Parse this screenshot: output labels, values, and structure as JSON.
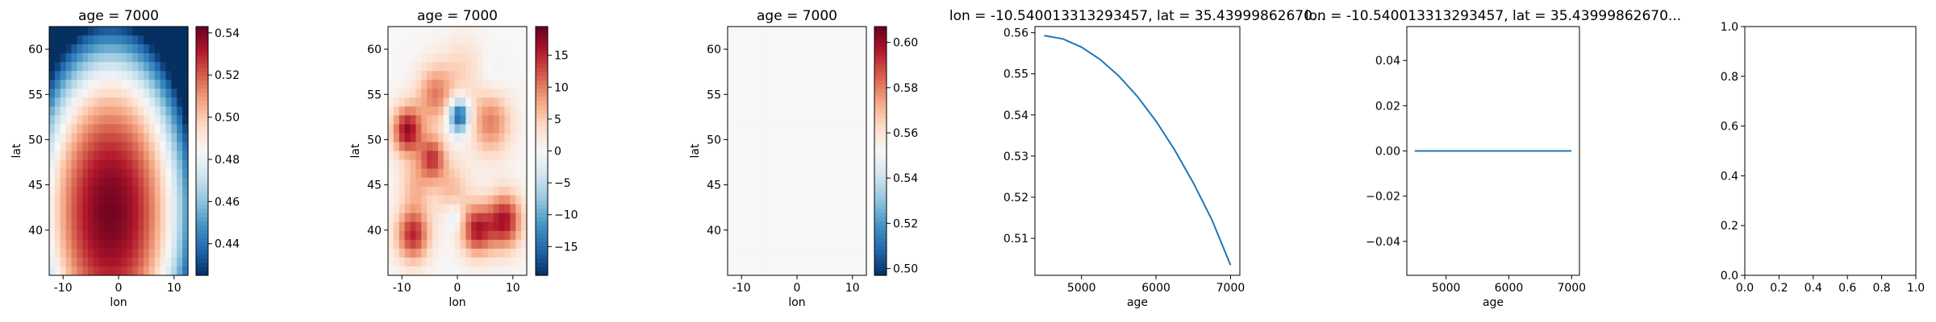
{
  "chart_data": [
    {
      "type": "heatmap",
      "title": "age = 7000",
      "xlabel": "lon",
      "ylabel": "lat",
      "xlim": [
        -12.5,
        12.5
      ],
      "ylim": [
        35,
        62.5
      ],
      "xticks": [
        "-10",
        "0",
        "10"
      ],
      "yticks": [
        "40",
        "45",
        "50",
        "55",
        "60"
      ],
      "colorbar": {
        "vmin": 0.425,
        "vmax": 0.543,
        "ticks": [
          "0.44",
          "0.46",
          "0.48",
          "0.50",
          "0.52",
          "0.54"
        ],
        "cmap": "RdBu_r"
      },
      "grid": false
    },
    {
      "type": "heatmap",
      "title": "age = 7000",
      "xlabel": "lon",
      "ylabel": "lat",
      "xlim": [
        -12.5,
        12.5
      ],
      "ylim": [
        35,
        62.5
      ],
      "xticks": [
        "-10",
        "0",
        "10"
      ],
      "yticks": [
        "40",
        "45",
        "50",
        "55",
        "60"
      ],
      "colorbar": {
        "vmin": -19.5,
        "vmax": 19.5,
        "ticks": [
          "−15",
          "−10",
          "−5",
          "0",
          "5",
          "10",
          "15"
        ],
        "cmap": "RdBu_r"
      },
      "grid": false
    },
    {
      "type": "heatmap",
      "title": "age = 7000",
      "xlabel": "lon",
      "ylabel": "lat",
      "xlim": [
        -12.5,
        12.5
      ],
      "ylim": [
        35,
        62.5
      ],
      "xticks": [
        "-10",
        "0",
        "10"
      ],
      "yticks": [
        "40",
        "45",
        "50",
        "55",
        "60"
      ],
      "colorbar": {
        "vmin": 0.497,
        "vmax": 0.607,
        "ticks": [
          "0.50",
          "0.52",
          "0.54",
          "0.56",
          "0.58",
          "0.60"
        ],
        "cmap": "RdBu_r"
      },
      "grid": false
    },
    {
      "type": "line",
      "title": "lon = -10.540013313293457, lat = 35.43999862670...",
      "xlabel": "age",
      "ylabel": "",
      "xlim": [
        4375,
        7125
      ],
      "ylim": [
        0.501,
        0.5615
      ],
      "xticks": [
        5000,
        6000,
        7000
      ],
      "yticks": [
        "0.51",
        "0.52",
        "0.53",
        "0.54",
        "0.55",
        "0.56"
      ],
      "series": [
        {
          "color": "#1f77b4",
          "x": [
            4500,
            4750,
            5000,
            5250,
            5500,
            5750,
            6000,
            6250,
            6500,
            6750,
            7000
          ],
          "y": [
            0.5593,
            0.5585,
            0.5565,
            0.5535,
            0.5495,
            0.5445,
            0.5385,
            0.5315,
            0.5235,
            0.5145,
            0.5035
          ]
        }
      ],
      "grid": false
    },
    {
      "type": "line",
      "title": "lon = -10.540013313293457, lat = 35.43999862670...",
      "xlabel": "age",
      "ylabel": "",
      "xlim": [
        4375,
        7125
      ],
      "ylim": [
        -0.055,
        0.055
      ],
      "xticks": [
        5000,
        6000,
        7000
      ],
      "yticks": [
        "−0.04",
        "−0.02",
        "0.00",
        "0.02",
        "0.04"
      ],
      "series": [
        {
          "color": "#1f77b4",
          "x": [
            4500,
            7000
          ],
          "y": [
            0,
            0
          ]
        }
      ],
      "grid": false
    },
    {
      "type": "line",
      "title": "",
      "xlabel": "",
      "ylabel": "",
      "xlim": [
        0,
        1
      ],
      "ylim": [
        0,
        1
      ],
      "xticks": [
        "0.0",
        "0.2",
        "0.4",
        "0.6",
        "0.8",
        "1.0"
      ],
      "yticks": [
        "0.0",
        "0.2",
        "0.4",
        "0.6",
        "0.8",
        "1.0"
      ],
      "series": [],
      "grid": false
    }
  ]
}
